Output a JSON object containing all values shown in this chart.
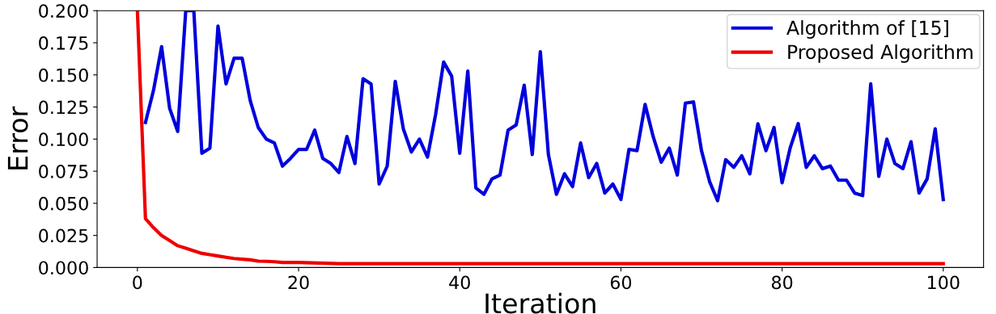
{
  "chart_data": {
    "type": "line",
    "xlabel": "Iteration",
    "ylabel": "Error",
    "xlim": [
      -5,
      105
    ],
    "xticks": [
      0,
      20,
      40,
      60,
      80,
      100
    ],
    "ylim": [
      0,
      0.2
    ],
    "yticks": [
      {
        "value": 0,
        "label": "0.000"
      },
      {
        "value": 0.025,
        "label": "0.025"
      },
      {
        "value": 0.05,
        "label": "0.050"
      },
      {
        "value": 0.075,
        "label": "0.075"
      },
      {
        "value": 0.1,
        "label": "0.100"
      },
      {
        "value": 0.125,
        "label": "0.125"
      },
      {
        "value": 0.15,
        "label": "0.150"
      },
      {
        "value": 0.175,
        "label": "0.175"
      },
      {
        "value": 0.2,
        "label": "0.200"
      }
    ],
    "legend": "top right",
    "grid": false,
    "marker": "none",
    "line_style": "solid",
    "series": [
      {
        "name": "Algorithm of [15]",
        "color": "#0000dd",
        "x": [
          1,
          2,
          3,
          4,
          5,
          6,
          7,
          8,
          9,
          10,
          11,
          12,
          13,
          14,
          15,
          16,
          17,
          18,
          19,
          20,
          21,
          22,
          23,
          24,
          25,
          26,
          27,
          28,
          29,
          30,
          31,
          32,
          33,
          34,
          35,
          36,
          37,
          38,
          39,
          40,
          41,
          42,
          43,
          44,
          45,
          46,
          47,
          48,
          49,
          50,
          51,
          52,
          53,
          54,
          55,
          56,
          57,
          58,
          59,
          60,
          61,
          62,
          63,
          64,
          65,
          66,
          67,
          68,
          69,
          70,
          71,
          72,
          73,
          74,
          75,
          76,
          77,
          78,
          79,
          80,
          81,
          82,
          83,
          84,
          85,
          86,
          87,
          88,
          89,
          90,
          91,
          92,
          93,
          94,
          95,
          96,
          97,
          98,
          99,
          100
        ],
        "values": [
          0.113,
          0.138,
          0.172,
          0.124,
          0.106,
          0.2,
          0.2,
          0.089,
          0.093,
          0.188,
          0.143,
          0.163,
          0.163,
          0.13,
          0.109,
          0.1,
          0.097,
          0.079,
          0.085,
          0.092,
          0.092,
          0.107,
          0.085,
          0.081,
          0.074,
          0.102,
          0.081,
          0.147,
          0.143,
          0.065,
          0.079,
          0.145,
          0.108,
          0.09,
          0.1,
          0.086,
          0.119,
          0.16,
          0.149,
          0.089,
          0.153,
          0.062,
          0.057,
          0.069,
          0.072,
          0.107,
          0.111,
          0.142,
          0.088,
          0.168,
          0.088,
          0.057,
          0.073,
          0.063,
          0.097,
          0.07,
          0.081,
          0.058,
          0.065,
          0.053,
          0.092,
          0.091,
          0.127,
          0.102,
          0.082,
          0.093,
          0.072,
          0.128,
          0.129,
          0.091,
          0.067,
          0.052,
          0.084,
          0.078,
          0.087,
          0.073,
          0.112,
          0.091,
          0.109,
          0.066,
          0.093,
          0.112,
          0.078,
          0.087,
          0.077,
          0.079,
          0.068,
          0.068,
          0.058,
          0.056,
          0.143,
          0.071,
          0.1,
          0.081,
          0.077,
          0.098,
          0.058,
          0.069,
          0.108,
          0.053
        ]
      },
      {
        "name": "Proposed Algorithm",
        "color": "#ee0000",
        "x": [
          0,
          1,
          2,
          3,
          4,
          5,
          6,
          7,
          8,
          9,
          10,
          11,
          12,
          13,
          14,
          15,
          16,
          17,
          18,
          20,
          25,
          30,
          35,
          40,
          45,
          50,
          55,
          60,
          65,
          70,
          75,
          80,
          85,
          90,
          95,
          100
        ],
        "values": [
          0.2,
          0.038,
          0.031,
          0.025,
          0.021,
          0.017,
          0.015,
          0.013,
          0.011,
          0.01,
          0.009,
          0.008,
          0.007,
          0.0065,
          0.006,
          0.005,
          0.0048,
          0.0045,
          0.004,
          0.004,
          0.003,
          0.003,
          0.003,
          0.003,
          0.003,
          0.003,
          0.003,
          0.003,
          0.003,
          0.003,
          0.003,
          0.003,
          0.003,
          0.003,
          0.003,
          0.003
        ]
      }
    ]
  }
}
